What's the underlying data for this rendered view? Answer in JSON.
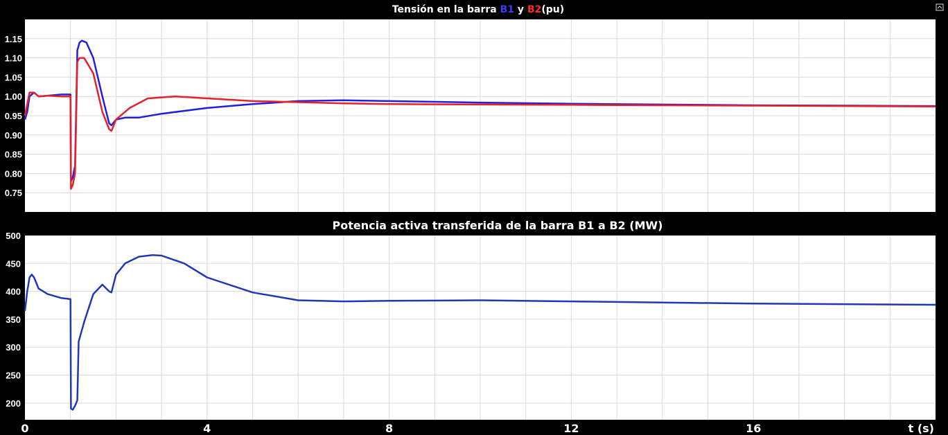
{
  "chart_data": [
    {
      "type": "line",
      "title_parts": [
        "Tensión en la barra ",
        "B1",
        " y ",
        "B2",
        "(pu)"
      ],
      "xlim": [
        0,
        20
      ],
      "ylim": [
        0.7,
        1.2
      ],
      "yticks": [
        "0.75",
        "0.80",
        "0.85",
        "0.90",
        "0.95",
        "1.00",
        "1.05",
        "1.10",
        "1.15"
      ],
      "grid": true,
      "series": [
        {
          "name": "B1",
          "color": "#1f1fe0",
          "x": [
            0,
            0.05,
            0.1,
            0.2,
            0.3,
            0.5,
            0.8,
            1.0,
            1.01,
            1.05,
            1.1,
            1.15,
            1.2,
            1.25,
            1.35,
            1.5,
            1.7,
            1.85,
            1.9,
            2.0,
            2.2,
            2.5,
            3,
            4,
            5,
            6,
            7,
            8,
            10,
            12,
            14,
            16,
            18,
            20
          ],
          "y": [
            0.94,
            0.96,
            1.0,
            1.01,
            1.0,
            1.002,
            1.005,
            1.005,
            0.78,
            0.79,
            0.82,
            1.12,
            1.14,
            1.145,
            1.14,
            1.1,
            1.0,
            0.93,
            0.925,
            0.94,
            0.945,
            0.945,
            0.955,
            0.97,
            0.98,
            0.988,
            0.99,
            0.988,
            0.984,
            0.981,
            0.979,
            0.977,
            0.976,
            0.975
          ]
        },
        {
          "name": "B2",
          "color": "#e8202a",
          "x": [
            0,
            0.05,
            0.1,
            0.2,
            0.3,
            0.5,
            0.8,
            1.0,
            1.01,
            1.05,
            1.1,
            1.15,
            1.2,
            1.3,
            1.5,
            1.7,
            1.85,
            1.9,
            2.0,
            2.3,
            2.7,
            3.3,
            4,
            5,
            6,
            7,
            8,
            10,
            12,
            14,
            16,
            18,
            20
          ],
          "y": [
            0.95,
            0.98,
            1.01,
            1.01,
            1.0,
            1.002,
            1.0,
            1.0,
            0.76,
            0.77,
            0.8,
            1.09,
            1.1,
            1.1,
            1.06,
            0.96,
            0.915,
            0.91,
            0.94,
            0.97,
            0.995,
            1.0,
            0.995,
            0.988,
            0.985,
            0.982,
            0.98,
            0.979,
            0.978,
            0.977,
            0.976,
            0.975,
            0.974
          ]
        }
      ]
    },
    {
      "type": "line",
      "title_parts": [
        "Potencia activa transferida de la barra B1 a B2 (MW)"
      ],
      "xlim": [
        0,
        20
      ],
      "ylim": [
        170,
        500
      ],
      "yticks": [
        "200",
        "250",
        "300",
        "350",
        "400",
        "450",
        "500"
      ],
      "xticks": [
        "0",
        "4",
        "8",
        "12",
        "16"
      ],
      "xlabel": "t (s)",
      "grid": true,
      "series": [
        {
          "name": "",
          "color": "#2436b8",
          "x": [
            0,
            0.05,
            0.1,
            0.15,
            0.2,
            0.3,
            0.5,
            0.8,
            1.0,
            1.01,
            1.05,
            1.1,
            1.15,
            1.18,
            1.3,
            1.5,
            1.7,
            1.85,
            1.9,
            2.0,
            2.2,
            2.5,
            2.8,
            3,
            3.5,
            4,
            5,
            6,
            7,
            8,
            10,
            12,
            14,
            16,
            18,
            20
          ],
          "y": [
            365,
            400,
            425,
            430,
            425,
            405,
            395,
            388,
            386,
            190,
            188,
            195,
            205,
            310,
            345,
            395,
            412,
            400,
            398,
            430,
            450,
            462,
            465,
            464,
            450,
            425,
            398,
            384,
            382,
            383,
            384,
            382,
            380,
            378,
            377,
            376
          ]
        }
      ]
    }
  ]
}
